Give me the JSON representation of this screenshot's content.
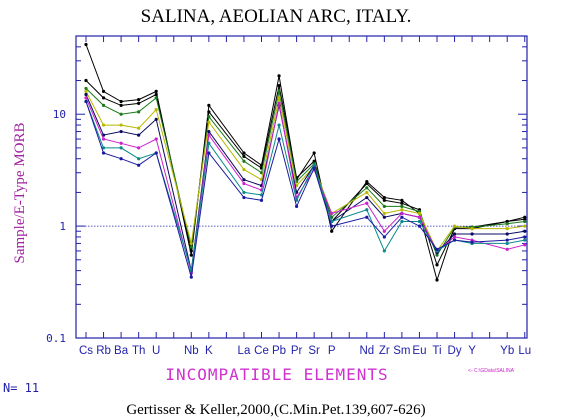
{
  "chart_data": {
    "type": "line",
    "title": "SALINA, AEOLIAN ARC, ITALY.",
    "ylabel": "Sample/E-Type MORB",
    "xlabel": "INCOMPATIBLE ELEMENTS",
    "y_scale": "log",
    "ylim": [
      0.1,
      50
    ],
    "y_ticks": [
      {
        "value": 0.1,
        "label": "0.1"
      },
      {
        "value": 1,
        "label": "1"
      },
      {
        "value": 10,
        "label": "10"
      }
    ],
    "reference_line": 1,
    "categories": [
      "Cs",
      "Rb",
      "Ba",
      "Th",
      "U",
      "",
      "Nb",
      "K",
      "",
      "La",
      "Ce",
      "Pb",
      "Pr",
      "Sr",
      "P",
      "",
      "Nd",
      "Zr",
      "Sm",
      "Eu",
      "Ti",
      "Dy",
      "Y",
      "",
      "Yb",
      "Lu"
    ],
    "series": [
      {
        "color": "#000000",
        "values": [
          42,
          16,
          13,
          13.5,
          16,
          null,
          0.55,
          12,
          null,
          4.5,
          3.5,
          22,
          2.6,
          4.5,
          0.9,
          null,
          2.5,
          1.8,
          1.7,
          1.3,
          0.33,
          0.98,
          0.98,
          null,
          1.1,
          1.2
        ]
      },
      {
        "color": "#000000",
        "values": [
          20,
          14,
          12,
          12.5,
          15,
          null,
          0.6,
          10.5,
          null,
          4.2,
          3.3,
          18,
          2.7,
          3.8,
          1.1,
          null,
          2.4,
          1.7,
          1.6,
          1.4,
          0.45,
          0.95,
          0.95,
          null,
          1.1,
          1.15
        ]
      },
      {
        "color": "#1a7a1a",
        "values": [
          17,
          12,
          10,
          10.5,
          14,
          null,
          0.65,
          9.5,
          null,
          3.8,
          3.0,
          16,
          2.5,
          3.6,
          1.2,
          null,
          2.2,
          1.5,
          1.5,
          1.35,
          0.55,
          0.98,
          0.98,
          null,
          1.05,
          1.1
        ]
      },
      {
        "color": "#b8b800",
        "values": [
          16,
          8,
          8,
          7.5,
          11,
          null,
          0.7,
          8.5,
          null,
          3.2,
          2.6,
          14,
          2.3,
          3.4,
          1.3,
          null,
          2.0,
          1.3,
          1.4,
          1.3,
          0.6,
          1.0,
          0.95,
          null,
          0.95,
          1.0
        ]
      },
      {
        "color": "#0a0a60",
        "values": [
          15,
          6.5,
          7,
          6.5,
          9,
          null,
          0.4,
          7,
          null,
          2.6,
          2.3,
          12,
          2.0,
          3.5,
          1.1,
          null,
          1.8,
          1.2,
          1.3,
          1.2,
          0.58,
          0.85,
          0.85,
          null,
          0.85,
          0.9
        ]
      },
      {
        "color": "#cc22cc",
        "values": [
          14,
          6,
          5.5,
          5,
          6,
          null,
          0.38,
          6.5,
          null,
          2.4,
          2.1,
          12.5,
          1.8,
          3.2,
          1.3,
          null,
          1.6,
          0.9,
          1.3,
          1.2,
          0.6,
          0.8,
          0.75,
          null,
          0.62,
          0.68
        ]
      },
      {
        "color": "#0a8a8a",
        "values": [
          13,
          5,
          5,
          4,
          4.5,
          null,
          0.4,
          5.5,
          null,
          2.0,
          1.9,
          8,
          1.7,
          3.5,
          1.1,
          null,
          1.4,
          0.6,
          1.1,
          1.1,
          0.6,
          0.75,
          0.7,
          null,
          0.7,
          0.75
        ]
      },
      {
        "color": "#1a1aa0",
        "values": [
          13,
          4.5,
          4,
          3.5,
          4.5,
          null,
          0.35,
          4.5,
          null,
          1.8,
          1.7,
          6,
          1.5,
          3.3,
          1.0,
          null,
          1.2,
          0.8,
          1.2,
          1.0,
          0.62,
          0.75,
          0.72,
          null,
          0.75,
          0.8
        ]
      }
    ],
    "count_label": "N= 11",
    "legend_note": "<- C:\\GData\\SALINA",
    "citation": "Gertisser & Keller,2000,(C.Min.Pet.139,607-626)",
    "colors": {
      "axis": "#2222aa",
      "tick_labels": "#2222aa",
      "ylabel": "#a020a0",
      "xlabel": "#d030d0",
      "count": "#2222aa",
      "legend_note": "#cc22cc"
    }
  }
}
